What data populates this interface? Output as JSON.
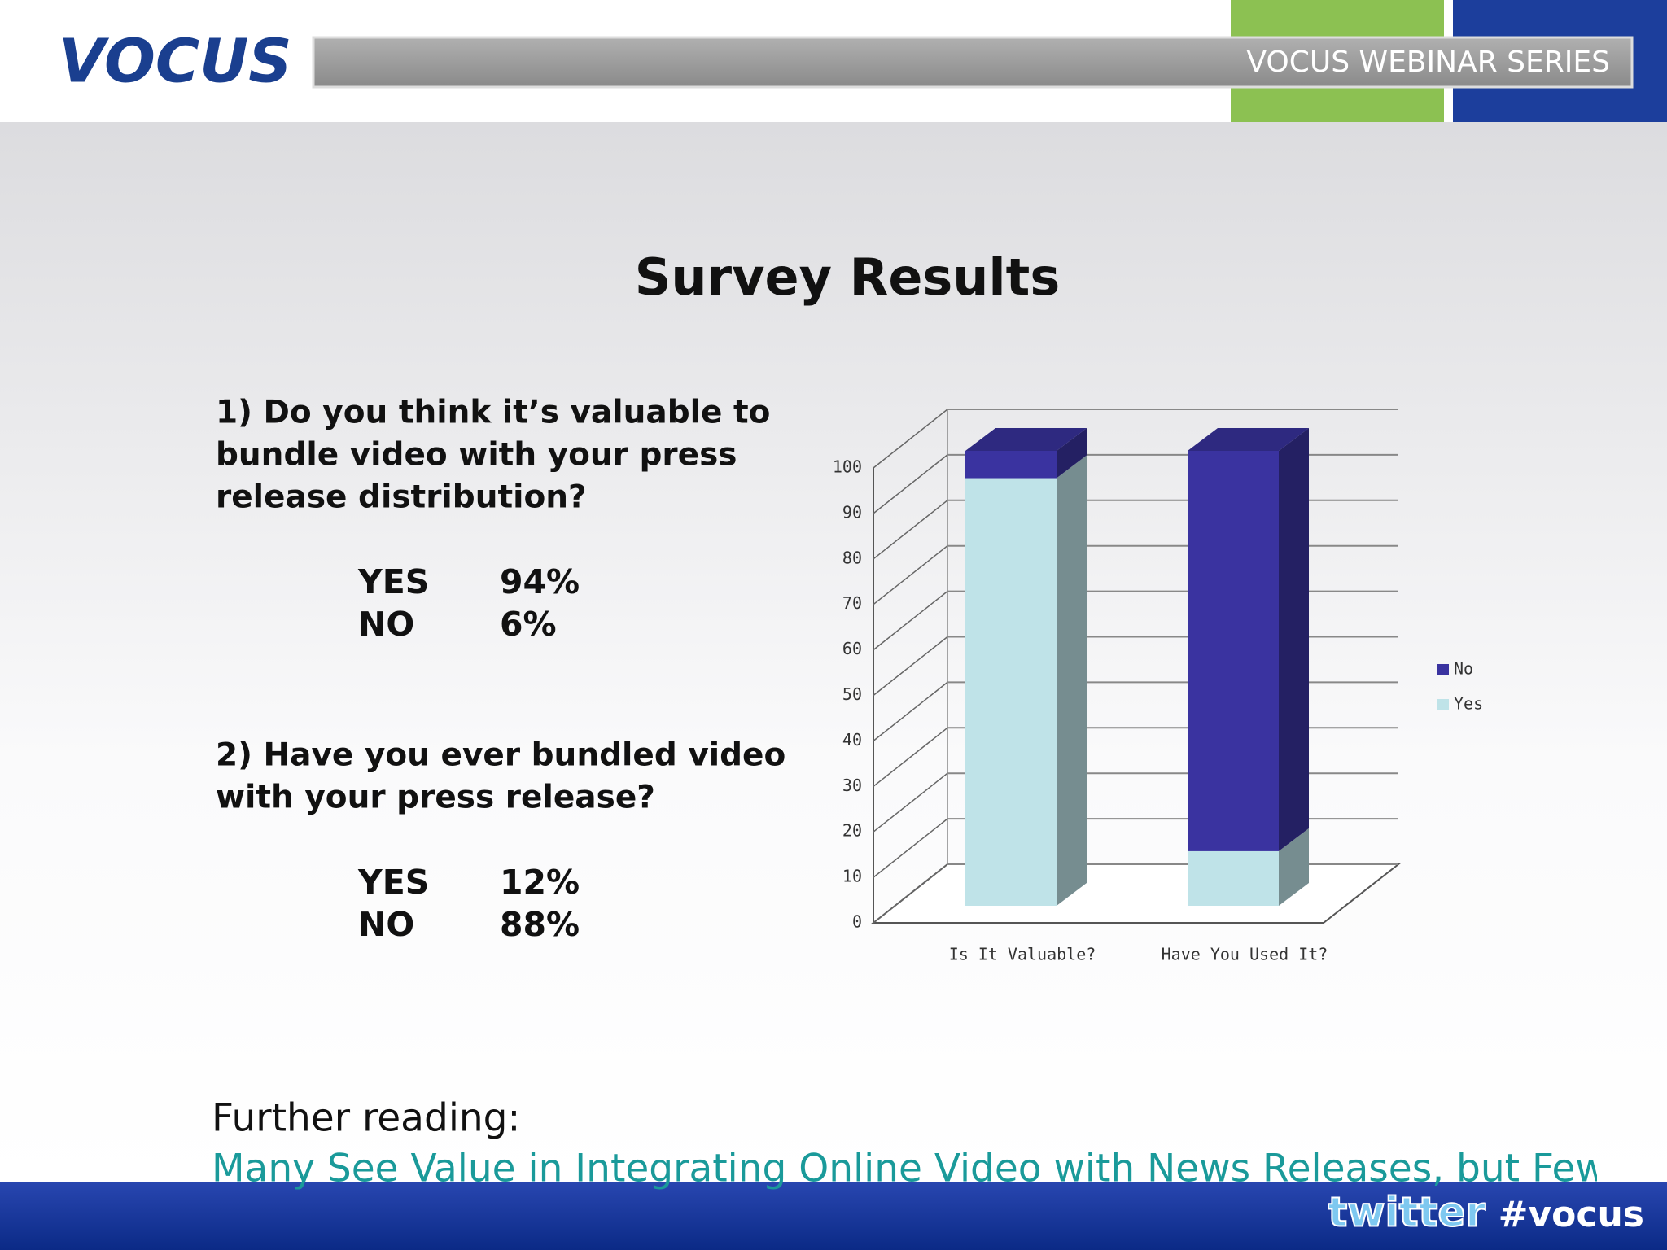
{
  "header": {
    "logo": "VOCUS",
    "series": "VOCUS WEBINAR SERIES"
  },
  "slide": {
    "title": "Survey Results",
    "questions": [
      {
        "lines": [
          "1) Do you think it’s valuable to",
          "bundle video with your press",
          "release distribution?"
        ],
        "answers": [
          [
            "YES",
            "94%"
          ],
          [
            "NO",
            "6%"
          ]
        ]
      },
      {
        "lines": [
          "2) Have you ever bundled video",
          "with your press release?"
        ],
        "answers": [
          [
            "YES",
            "12%"
          ],
          [
            "NO",
            "88%"
          ]
        ]
      }
    ]
  },
  "chart_data": {
    "type": "bar3d_stacked",
    "categories": [
      "Is It Valuable?",
      "Have You Used It?"
    ],
    "series": [
      {
        "name": "Yes",
        "color": "#bfe3e8",
        "values": [
          94,
          12
        ]
      },
      {
        "name": "No",
        "color": "#3a33a0",
        "values": [
          6,
          88
        ]
      }
    ],
    "ylim": [
      0,
      100
    ],
    "yticks": [
      0,
      10,
      20,
      30,
      40,
      50,
      60,
      70,
      80,
      90,
      100
    ],
    "grid": true,
    "legend": "right"
  },
  "footer": {
    "further": "Further reading:",
    "link": "Many See Value in Integrating Online Video with News Releases, but Few I",
    "twitter": "twitter",
    "hashtag": "#vocus"
  }
}
